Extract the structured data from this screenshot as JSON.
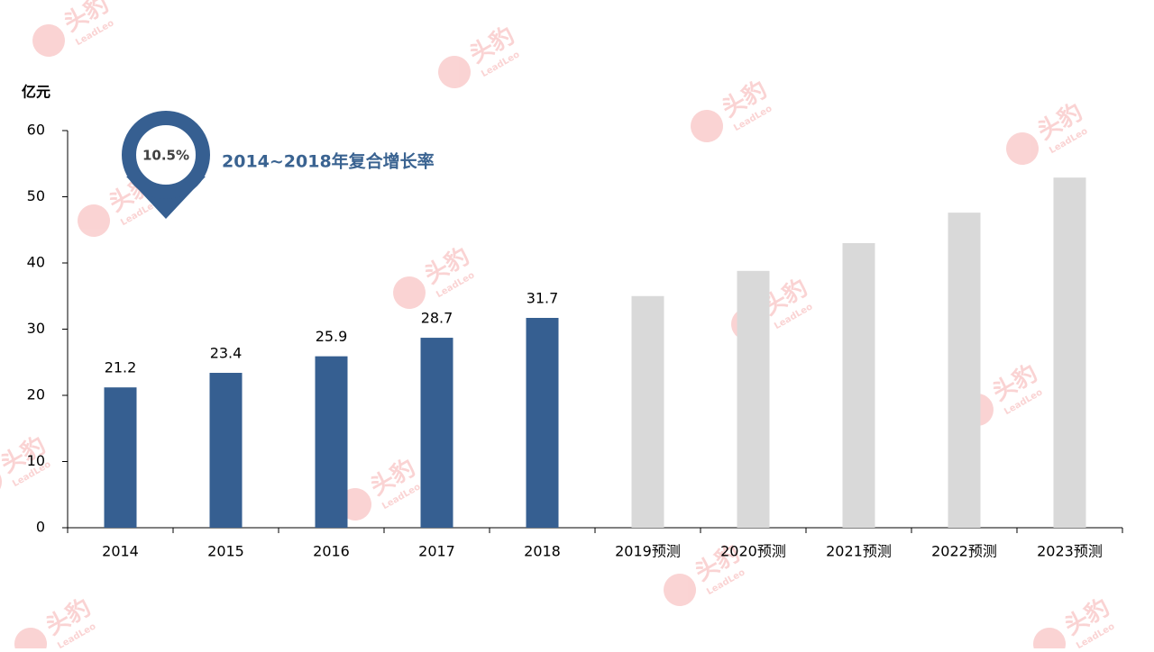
{
  "chart_data": {
    "type": "bar",
    "y_axis_label": "亿元",
    "categories": [
      "2014",
      "2015",
      "2016",
      "2017",
      "2018",
      "2019预测",
      "2020预测",
      "2021预测",
      "2022预测",
      "2023预测"
    ],
    "values": [
      21.2,
      23.4,
      25.9,
      28.7,
      31.7,
      35.0,
      38.8,
      43.0,
      47.6,
      52.9
    ],
    "colors": [
      "#365f91",
      "#365f91",
      "#365f91",
      "#365f91",
      "#365f91",
      "#d9d9d9",
      "#d9d9d9",
      "#d9d9d9",
      "#d9d9d9",
      "#d9d9d9"
    ],
    "show_value_labels": [
      true,
      true,
      true,
      true,
      true,
      false,
      false,
      false,
      false,
      false
    ],
    "ylim": [
      0,
      60
    ],
    "yticks": [
      0,
      10,
      20,
      30,
      40,
      50,
      60
    ],
    "grid": false,
    "annotation": {
      "value_text": "10.5%",
      "text": "2014~2018年复合增长率"
    },
    "watermark": {
      "text": "头豹",
      "sub": "LeadLeo"
    }
  }
}
